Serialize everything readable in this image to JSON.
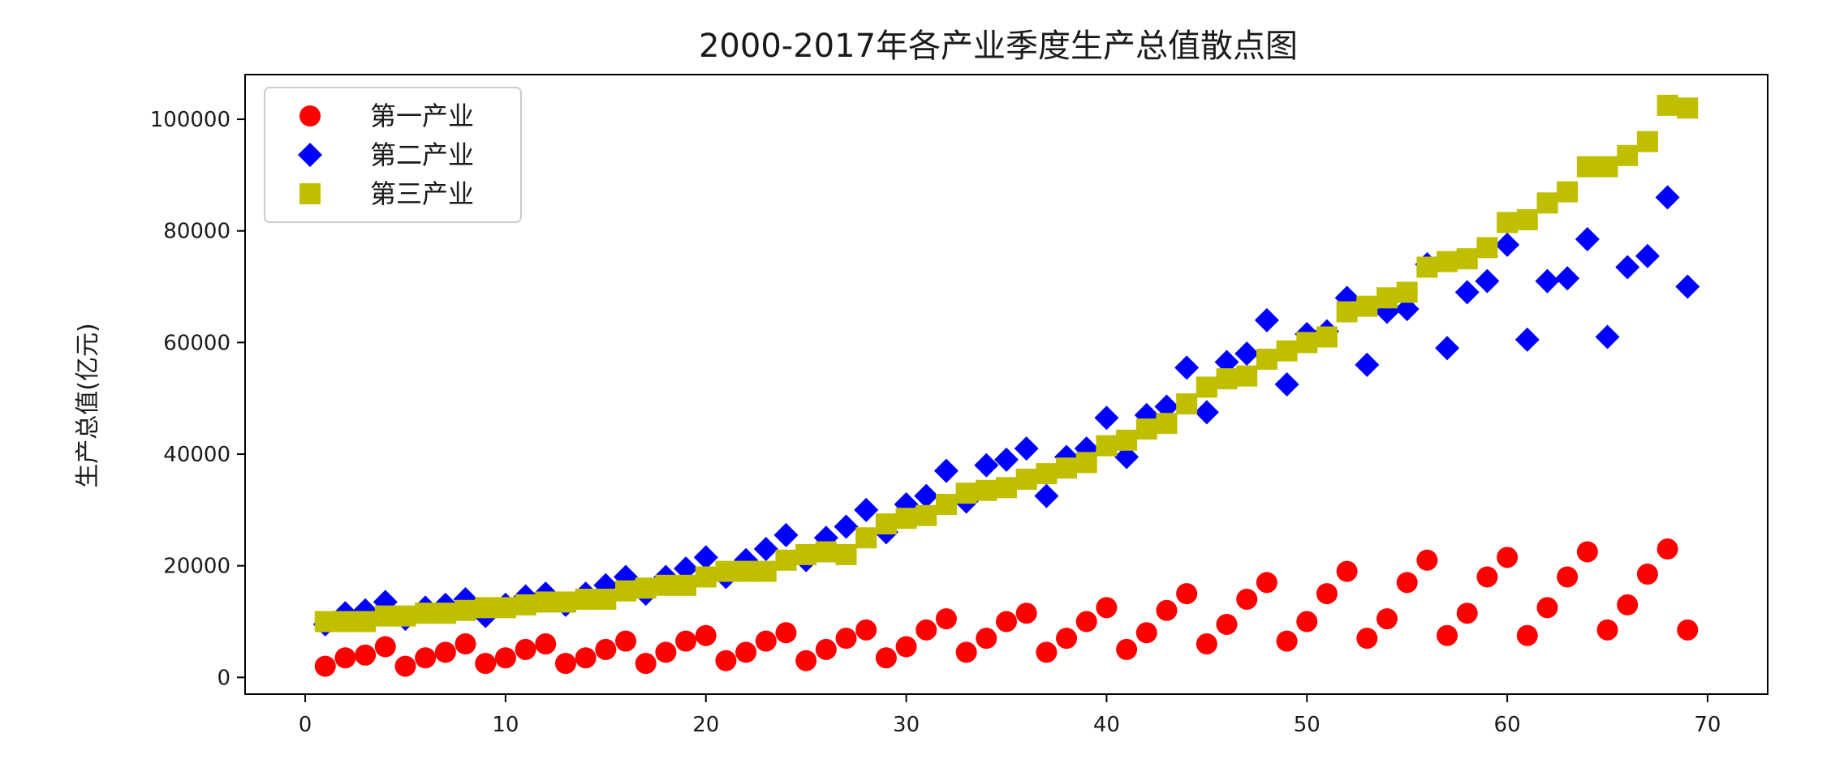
{
  "chart_data": {
    "type": "scatter",
    "title": "2000-2017年各产业季度生产总值散点图",
    "xlabel": "",
    "ylabel": "生产总值(亿元)",
    "xlim": [
      -3,
      73
    ],
    "ylim": [
      -3000,
      108000
    ],
    "xticks": [
      0,
      10,
      20,
      30,
      40,
      50,
      60,
      70
    ],
    "yticks": [
      0,
      20000,
      40000,
      60000,
      80000,
      100000
    ],
    "grid": false,
    "legend_position": "top-left",
    "x": [
      1,
      2,
      3,
      4,
      5,
      6,
      7,
      8,
      9,
      10,
      11,
      12,
      13,
      14,
      15,
      16,
      17,
      18,
      19,
      20,
      21,
      22,
      23,
      24,
      25,
      26,
      27,
      28,
      29,
      30,
      31,
      32,
      33,
      34,
      35,
      36,
      37,
      38,
      39,
      40,
      41,
      42,
      43,
      44,
      45,
      46,
      47,
      48,
      49,
      50,
      51,
      52,
      53,
      54,
      55,
      56,
      57,
      58,
      59,
      60,
      61,
      62,
      63,
      64,
      65,
      66,
      67,
      68,
      69
    ],
    "series": [
      {
        "name": "第一产业",
        "marker": "circle",
        "color": "#ff0000",
        "values": [
          2000,
          3500,
          4000,
          5500,
          2000,
          3500,
          4500,
          6000,
          2500,
          3500,
          5000,
          6000,
          2500,
          3500,
          5000,
          6500,
          2500,
          4500,
          6500,
          7500,
          3000,
          4500,
          6500,
          8000,
          3000,
          5000,
          7000,
          8500,
          3500,
          5500,
          8500,
          10500,
          4500,
          7000,
          10000,
          11500,
          4500,
          7000,
          10000,
          12500,
          5000,
          8000,
          12000,
          15000,
          6000,
          9500,
          14000,
          17000,
          6500,
          10000,
          15000,
          19000,
          7000,
          10500,
          17000,
          21000,
          7500,
          11500,
          18000,
          21500,
          7500,
          12500,
          18000,
          22500,
          8500,
          13000,
          18500,
          23000,
          8500
        ]
      },
      {
        "name": "第二产业",
        "marker": "diamond",
        "color": "#0000ff",
        "values": [
          9500,
          11500,
          12000,
          13500,
          10500,
          12500,
          13000,
          14000,
          11000,
          13000,
          14500,
          15000,
          13000,
          15000,
          16500,
          18000,
          15000,
          18000,
          19500,
          21500,
          18000,
          21000,
          23000,
          25500,
          21000,
          25000,
          27000,
          30000,
          26000,
          31000,
          32500,
          37000,
          31500,
          38000,
          39000,
          41000,
          32500,
          39500,
          41000,
          46500,
          39500,
          47000,
          48500,
          55500,
          47500,
          56500,
          58000,
          64000,
          52500,
          61500,
          62000,
          68000,
          56000,
          65500,
          66000,
          74000,
          59000,
          69000,
          71000,
          77500,
          60500,
          71000,
          71500,
          78500,
          61000,
          73500,
          75500,
          86000,
          70000
        ]
      },
      {
        "name": "第三产业",
        "marker": "square",
        "color": "#bfbf00",
        "values": [
          10000,
          10000,
          10000,
          11000,
          11000,
          11500,
          11500,
          12000,
          12500,
          12500,
          13000,
          13500,
          13500,
          14000,
          14000,
          15500,
          16000,
          16500,
          16500,
          18000,
          19000,
          19000,
          19000,
          21000,
          22000,
          22500,
          22000,
          25000,
          27500,
          28500,
          29000,
          31000,
          33000,
          33500,
          34000,
          35500,
          36500,
          37500,
          38500,
          41500,
          42500,
          44500,
          45500,
          49000,
          52000,
          53500,
          54000,
          57000,
          58500,
          60000,
          61000,
          65500,
          66500,
          68000,
          69000,
          73500,
          74500,
          75000,
          77000,
          81500,
          82000,
          85000,
          87000,
          91500,
          91500,
          93500,
          96000,
          102500,
          102000
        ]
      }
    ]
  }
}
